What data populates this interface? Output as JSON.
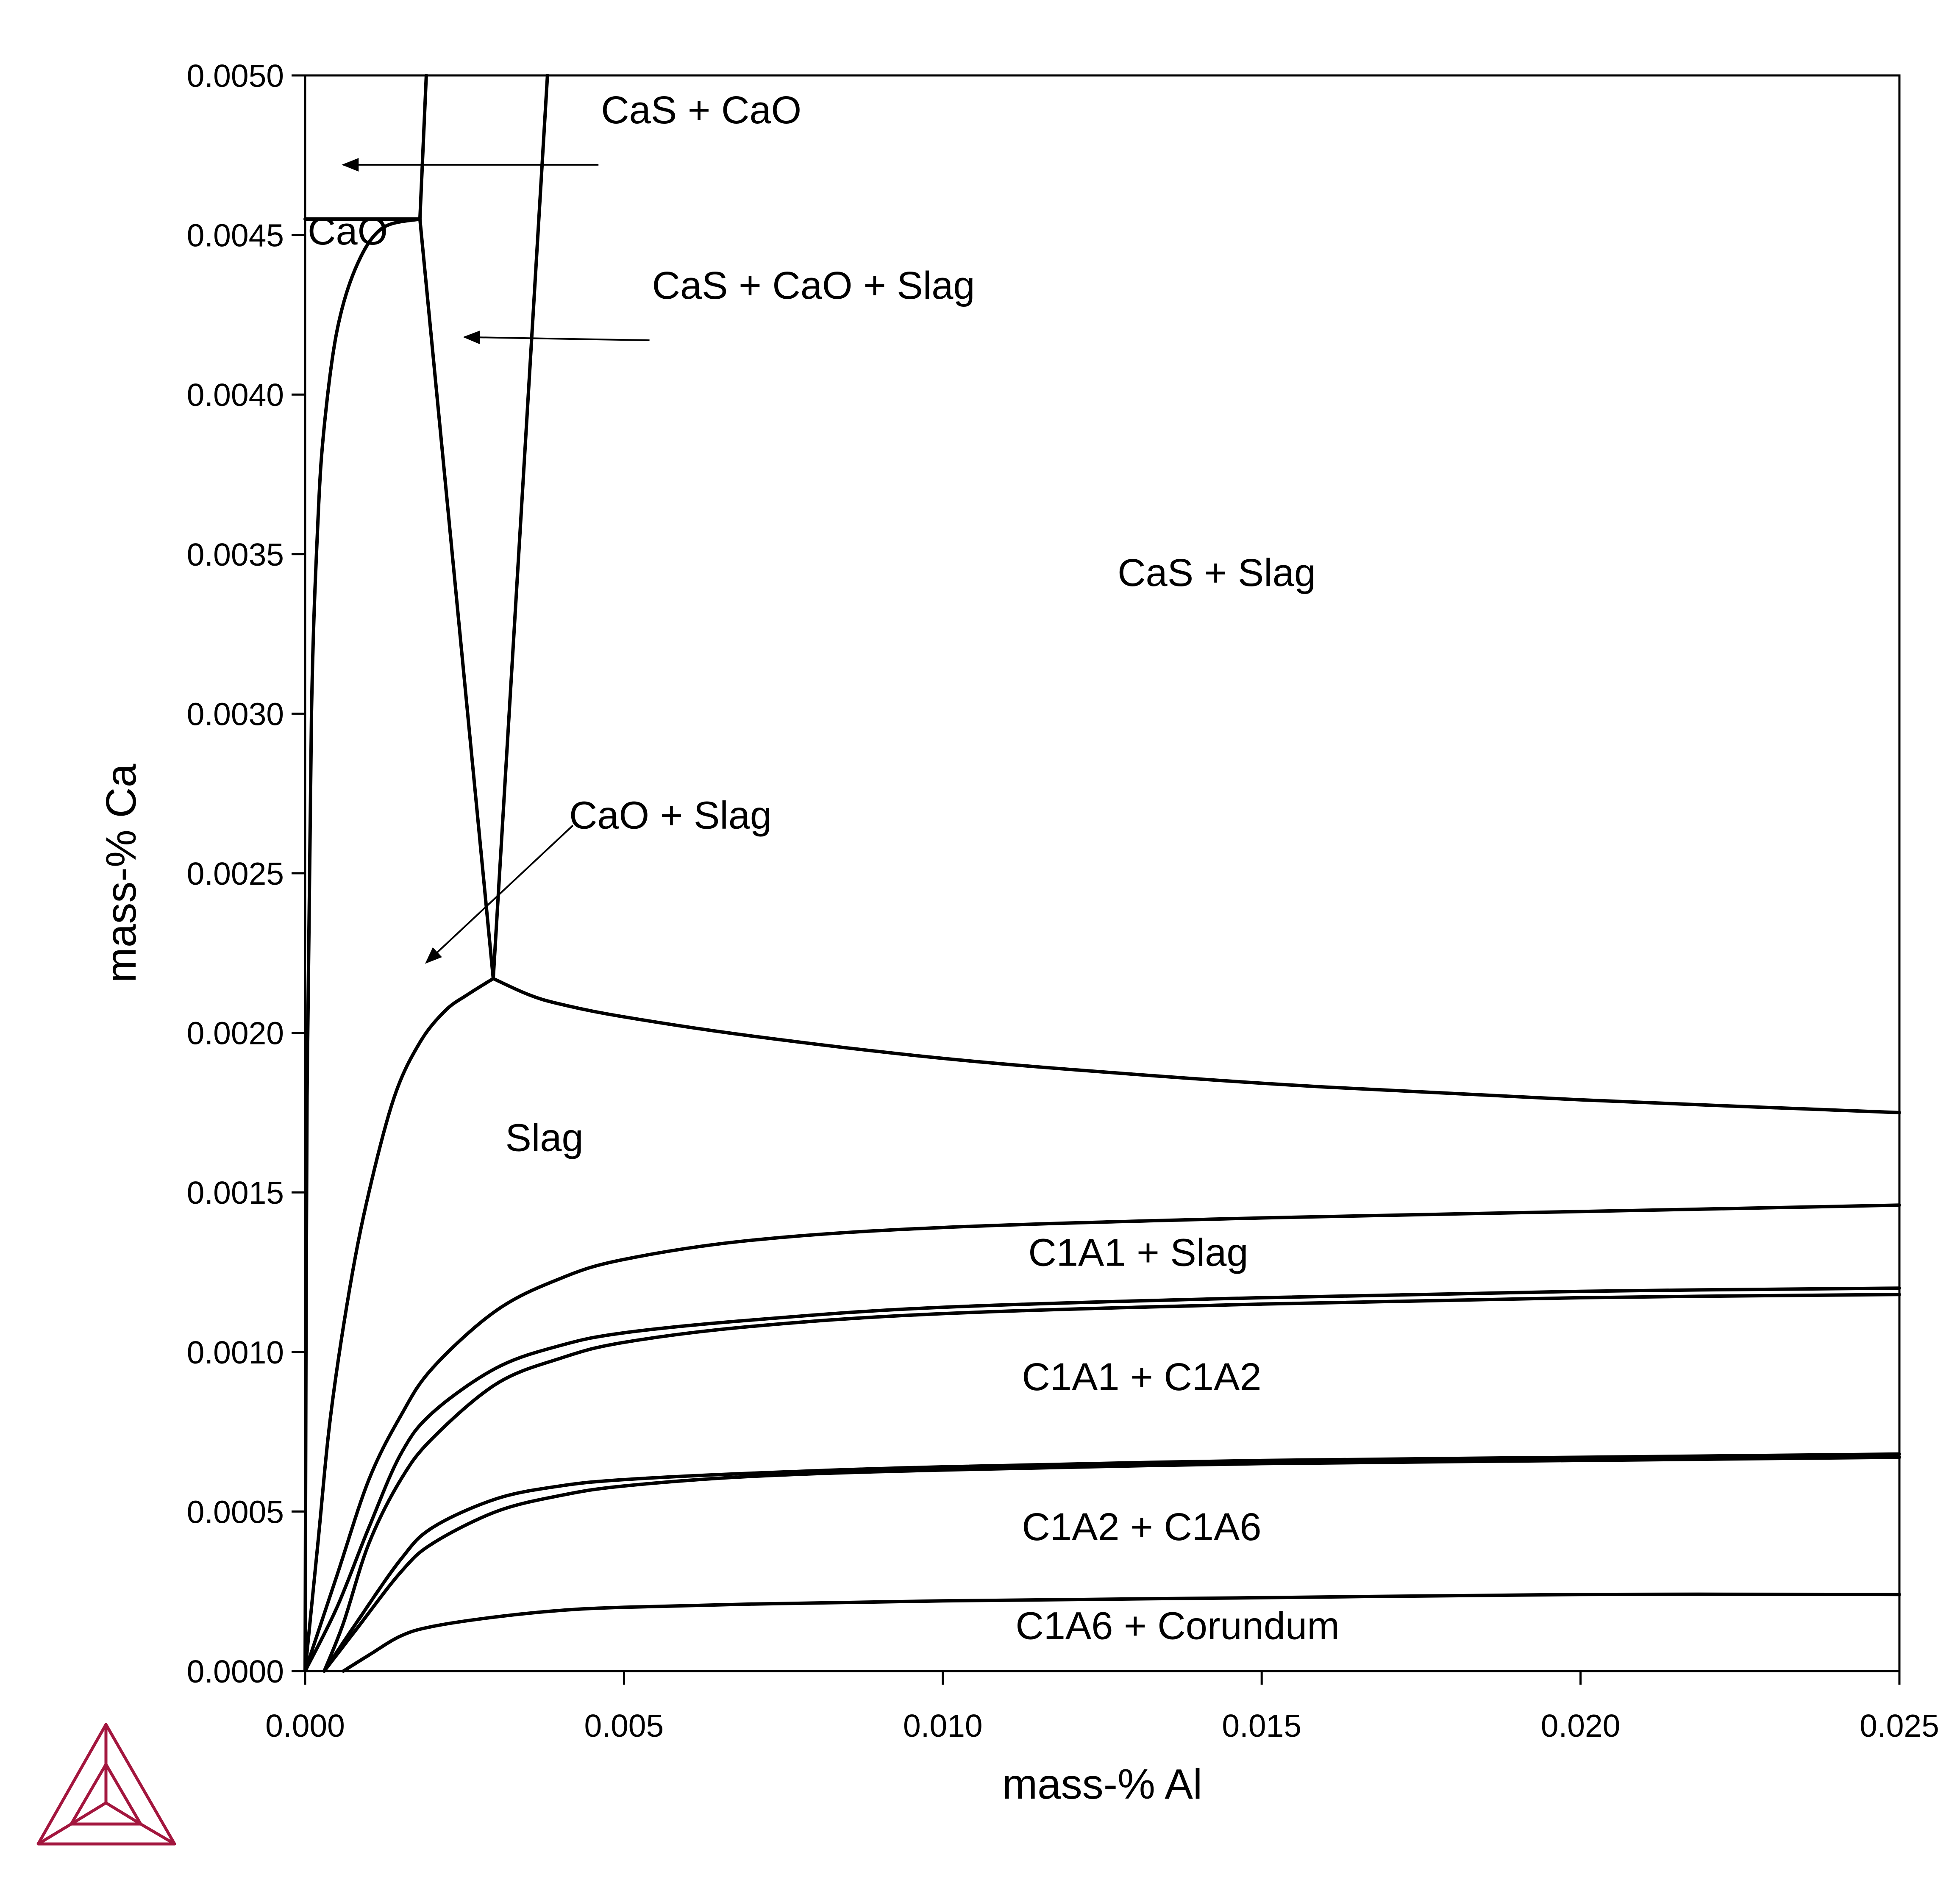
{
  "chart_data": {
    "type": "line",
    "xlabel": "mass-% Al",
    "ylabel": "mass-% Ca",
    "xlim": [
      0,
      0.025
    ],
    "ylim": [
      0,
      0.005
    ],
    "grid": false,
    "x_ticks": [
      "0.000",
      "0.005",
      "0.010",
      "0.015",
      "0.020",
      "0.025"
    ],
    "y_ticks": [
      "0.0000",
      "0.0005",
      "0.0010",
      "0.0015",
      "0.0020",
      "0.0025",
      "0.0030",
      "0.0035",
      "0.0040",
      "0.0045",
      "0.0050"
    ],
    "boundaries": [
      {
        "x": [
          0.0,
          0.0018
        ],
        "y": [
          0.00455,
          0.00455
        ]
      },
      {
        "x": [
          0.0018,
          0.0019
        ],
        "y": [
          0.00455,
          0.005
        ]
      },
      {
        "x": [
          0.0018,
          0.00295
        ],
        "y": [
          0.00455,
          0.00217
        ]
      },
      {
        "x": [
          0.00295,
          0.0038
        ],
        "y": [
          0.00217,
          0.005
        ]
      },
      {
        "x": [
          0.0,
          3e-05,
          0.0001,
          0.0002,
          0.0003,
          0.0005,
          0.0008,
          0.0012,
          0.0018
        ],
        "y": [
          0.0,
          0.0018,
          0.003,
          0.0036,
          0.0039,
          0.0042,
          0.0044,
          0.00452,
          0.00455
        ]
      },
      {
        "x": [
          0.0,
          0.0002,
          0.0004,
          0.0007,
          0.001,
          0.0014,
          0.0018,
          0.0022,
          0.00255,
          0.00295
        ],
        "y": [
          0.0,
          0.0004,
          0.0008,
          0.0012,
          0.0015,
          0.0018,
          0.00197,
          0.00207,
          0.00212,
          0.00217
        ]
      },
      {
        "x": [
          0.00295,
          0.0035,
          0.004,
          0.005,
          0.007,
          0.01,
          0.013,
          0.016,
          0.02,
          0.025
        ],
        "y": [
          0.00217,
          0.00212,
          0.00209,
          0.00205,
          0.00199,
          0.00192,
          0.00187,
          0.00183,
          0.00179,
          0.00175
        ]
      },
      {
        "x": [
          0.0,
          0.0005,
          0.001,
          0.0015,
          0.002,
          0.003,
          0.004,
          0.005,
          0.007,
          0.01,
          0.015,
          0.02,
          0.025
        ],
        "y": [
          0.0,
          0.0003,
          0.0006,
          0.0008,
          0.00095,
          0.00113,
          0.00123,
          0.00129,
          0.00135,
          0.00139,
          0.00142,
          0.00144,
          0.00146
        ]
      },
      {
        "x": [
          0.0,
          0.0005,
          0.001,
          0.0015,
          0.002,
          0.003,
          0.004,
          0.005,
          0.007,
          0.01,
          0.015,
          0.02,
          0.025
        ],
        "y": [
          0.0,
          0.0002,
          0.00045,
          0.00068,
          0.00081,
          0.00095,
          0.00102,
          0.00106,
          0.0011,
          0.00114,
          0.00117,
          0.00119,
          0.0012
        ]
      },
      {
        "x": [
          0.0003,
          0.0006,
          0.001,
          0.0015,
          0.002,
          0.003,
          0.004,
          0.005,
          0.007,
          0.01,
          0.015,
          0.02,
          0.025
        ],
        "y": [
          0.0,
          0.00015,
          0.0004,
          0.0006,
          0.00073,
          0.0009,
          0.00098,
          0.00103,
          0.00108,
          0.00112,
          0.00115,
          0.00117,
          0.00118
        ]
      },
      {
        "x": [
          0.0003,
          0.0008,
          0.0015,
          0.002,
          0.003,
          0.004,
          0.005,
          0.007,
          0.01,
          0.015,
          0.02,
          0.025
        ],
        "y": [
          0.0,
          0.00015,
          0.00035,
          0.00045,
          0.00054,
          0.00058,
          0.0006,
          0.00062,
          0.00064,
          0.00066,
          0.00067,
          0.00068
        ]
      },
      {
        "x": [
          0.0003,
          0.0008,
          0.0015,
          0.002,
          0.003,
          0.004,
          0.005,
          0.007,
          0.01,
          0.015,
          0.02,
          0.025
        ],
        "y": [
          0.0,
          0.00013,
          0.00031,
          0.0004,
          0.0005,
          0.00055,
          0.00058,
          0.00061,
          0.00063,
          0.00065,
          0.00066,
          0.00067
        ]
      },
      {
        "x": [
          0.0006,
          0.001,
          0.0015,
          0.002,
          0.003,
          0.004,
          0.005,
          0.007,
          0.01,
          0.015,
          0.02,
          0.025
        ],
        "y": [
          0.0,
          5e-05,
          0.00011,
          0.00014,
          0.00017,
          0.00019,
          0.0002,
          0.00021,
          0.00022,
          0.00023,
          0.00024,
          0.00024
        ]
      }
    ],
    "region_labels": [
      {
        "text": "CaS + CaO",
        "x": 0.0046,
        "y": 0.00485
      },
      {
        "text": "CaO",
        "x": 0.0,
        "y": 0.00447
      },
      {
        "text": "CaS + CaO + Slag",
        "x": 0.0054,
        "y": 0.0043
      },
      {
        "text": "CaS + Slag",
        "x": 0.0127,
        "y": 0.0034
      },
      {
        "text": "CaO + Slag",
        "x": 0.0041,
        "y": 0.00264
      },
      {
        "text": "Slag",
        "x": 0.0031,
        "y": 0.00163
      },
      {
        "text": "C1A1 + Slag",
        "x": 0.0113,
        "y": 0.00127
      },
      {
        "text": "C1A1 + C1A2",
        "x": 0.0112,
        "y": 0.00088
      },
      {
        "text": "C1A2 + C1A6",
        "x": 0.0112,
        "y": 0.00041
      },
      {
        "text": "C1A6 + Corundum",
        "x": 0.0111,
        "y": 0.0001
      }
    ],
    "arrows": [
      {
        "from": [
          0.0046,
          0.00472
        ],
        "to": [
          0.0006,
          0.00472
        ]
      },
      {
        "from": [
          0.0054,
          0.00417
        ],
        "to": [
          0.0025,
          0.00418
        ]
      },
      {
        "from": [
          0.0042,
          0.00265
        ],
        "to": [
          0.0019,
          0.00222
        ]
      }
    ]
  },
  "logo": {
    "name": "triangle-logo-icon",
    "color": "#A3163E"
  }
}
